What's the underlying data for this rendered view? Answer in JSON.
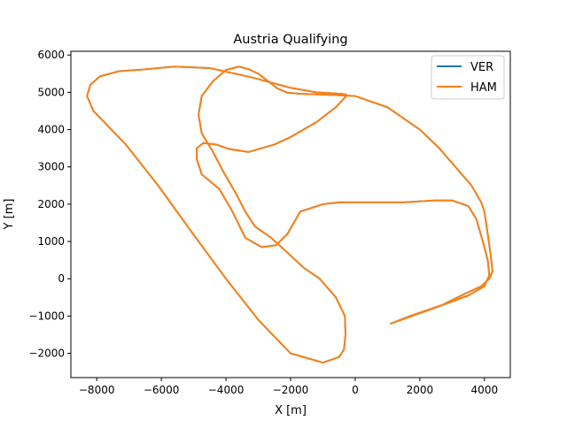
{
  "chart_data": {
    "type": "line",
    "title": "Austria Qualifying",
    "xlabel": "X [m]",
    "ylabel": "Y [m]",
    "xlim": [
      -8800,
      4800
    ],
    "ylim": [
      -2650,
      6100
    ],
    "xticks": [
      -8000,
      -6000,
      -4000,
      -2000,
      0,
      2000,
      4000
    ],
    "yticks": [
      -2000,
      -1000,
      0,
      1000,
      2000,
      3000,
      4000,
      5000,
      6000
    ],
    "xtick_labels": [
      "−8000",
      "−6000",
      "−4000",
      "−2000",
      "0",
      "2000",
      "4000"
    ],
    "ytick_labels": [
      "−2000",
      "−1000",
      "0",
      "1000",
      "2000",
      "3000",
      "4000",
      "5000",
      "6000"
    ],
    "legend_position": "top-right",
    "grid": false,
    "series": [
      {
        "name": "VER",
        "color": "#1f77b4",
        "x": [
          1100,
          2400,
          3500,
          4000,
          4150,
          4100,
          3950,
          3750,
          3500,
          3000,
          2450,
          1500,
          500,
          -500,
          -1000,
          -1700,
          -1900,
          -2100,
          -2450,
          -2900,
          -3400,
          -3800,
          -4200,
          -4750,
          -4900,
          -4900,
          -4700,
          -4300,
          -3900,
          -3300,
          -2500,
          -2000,
          -1200,
          -600,
          -300,
          -280,
          -350,
          -600,
          -1200,
          -2000,
          -3200,
          -4500,
          -5600,
          -6600,
          -7300,
          -7900,
          -8200,
          -8300,
          -8100,
          -7100,
          -6100,
          -5100,
          -4000,
          -3000,
          -2000,
          -1000,
          -500,
          -350,
          -300,
          -320,
          -600,
          -1100,
          -1600,
          -2100,
          -2600,
          -3100,
          -3400,
          -3700,
          -4100,
          -4400,
          -4750,
          -4850,
          -4750,
          -4400,
          -4000,
          -3600,
          -3300,
          -3000,
          -2700,
          -2400,
          -2100,
          -1700,
          -1000,
          0,
          1000,
          2000,
          2600,
          3100,
          3600,
          3900,
          4000,
          4100,
          4200,
          4250,
          4150,
          3900,
          3400,
          2700,
          1700,
          1100
        ],
        "y": [
          -1200,
          -800,
          -450,
          -200,
          100,
          500,
          1000,
          1600,
          1950,
          2100,
          2100,
          2050,
          2050,
          2050,
          2000,
          1800,
          1500,
          1200,
          900,
          850,
          1100,
          1800,
          2400,
          2800,
          3200,
          3500,
          3640,
          3600,
          3480,
          3400,
          3600,
          3800,
          4200,
          4600,
          4880,
          4940,
          4950,
          4970,
          5000,
          5120,
          5400,
          5650,
          5690,
          5610,
          5570,
          5430,
          5200,
          4900,
          4500,
          3600,
          2500,
          1300,
          0,
          -1100,
          -2000,
          -2250,
          -2100,
          -1900,
          -1500,
          -1000,
          -500,
          0,
          300,
          700,
          1100,
          1400,
          1800,
          2300,
          2900,
          3400,
          3900,
          4400,
          4900,
          5300,
          5600,
          5690,
          5620,
          5500,
          5300,
          5100,
          4990,
          4960,
          4940,
          4900,
          4600,
          4000,
          3500,
          3000,
          2500,
          2050,
          1800,
          1200,
          600,
          200,
          0,
          -200,
          -400,
          -700,
          -1000,
          -1200
        ]
      },
      {
        "name": "HAM",
        "color": "#ff7f0e"
      }
    ]
  }
}
